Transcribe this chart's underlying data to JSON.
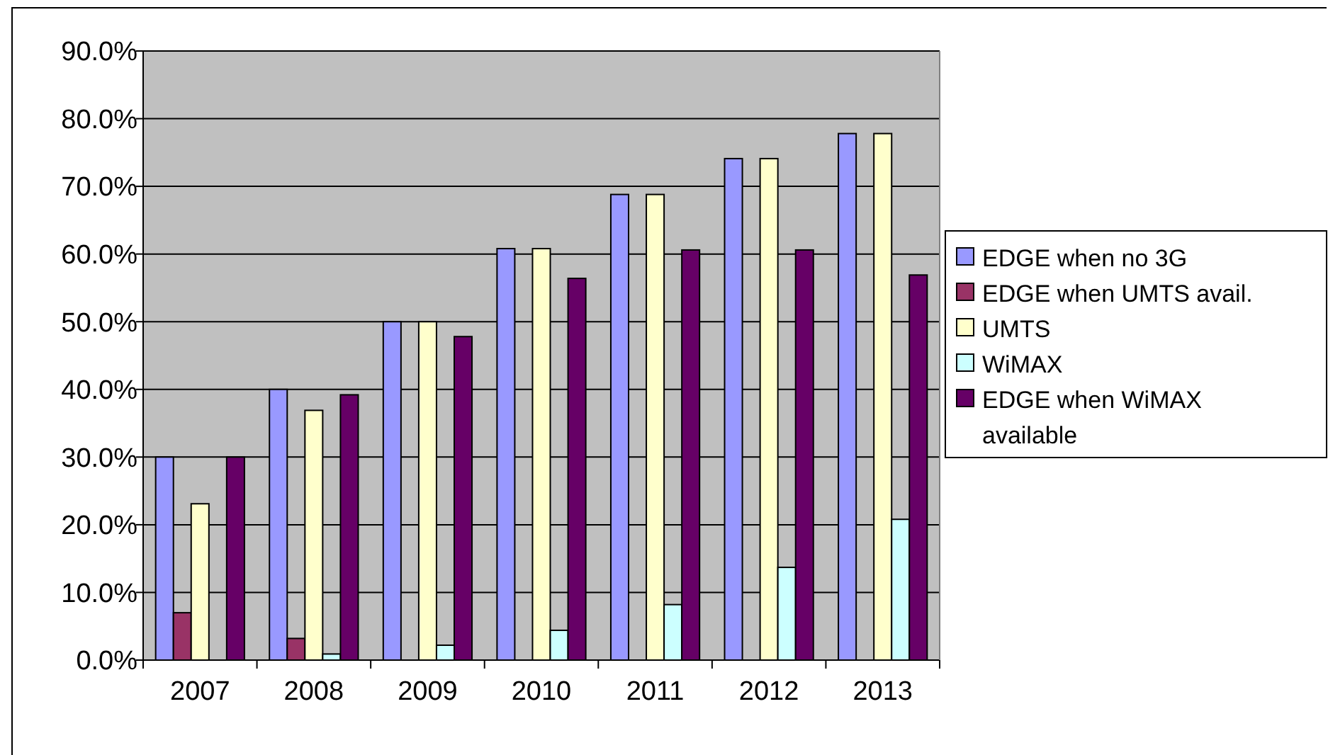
{
  "chart_data": {
    "type": "bar",
    "categories": [
      "2007",
      "2008",
      "2009",
      "2010",
      "2011",
      "2012",
      "2013"
    ],
    "series": [
      {
        "name": "EDGE when no 3G",
        "color": "#9999ff",
        "values": [
          30,
          40,
          50,
          60.8,
          68.8,
          74.1,
          77.8
        ]
      },
      {
        "name": "EDGE when UMTS avail.",
        "color": "#993366",
        "values": [
          7,
          3.2,
          null,
          null,
          null,
          null,
          null
        ]
      },
      {
        "name": "UMTS",
        "color": "#ffffcc",
        "values": [
          23.1,
          36.9,
          50,
          60.8,
          68.8,
          74.1,
          77.8
        ]
      },
      {
        "name": "WiMAX",
        "color": "#ccffff",
        "values": [
          null,
          0.9,
          2.2,
          4.4,
          8.2,
          13.7,
          20.8
        ]
      },
      {
        "name": "EDGE when WiMAX available",
        "color": "#660066",
        "values": [
          30,
          39.2,
          47.8,
          56.4,
          60.6,
          60.6,
          56.9
        ]
      }
    ],
    "ylim": [
      0,
      90
    ],
    "yticks": [
      {
        "value": 0,
        "label": "0.0%"
      },
      {
        "value": 10,
        "label": "10.0%"
      },
      {
        "value": 20,
        "label": "20.0%"
      },
      {
        "value": 30,
        "label": "30.0%"
      },
      {
        "value": 40,
        "label": "40.0%"
      },
      {
        "value": 50,
        "label": "50.0%"
      },
      {
        "value": 60,
        "label": "60.0%"
      },
      {
        "value": 70,
        "label": "70.0%"
      },
      {
        "value": 80,
        "label": "80.0%"
      },
      {
        "value": 90,
        "label": "90.0%"
      }
    ],
    "grid": "y",
    "legend": "right"
  }
}
